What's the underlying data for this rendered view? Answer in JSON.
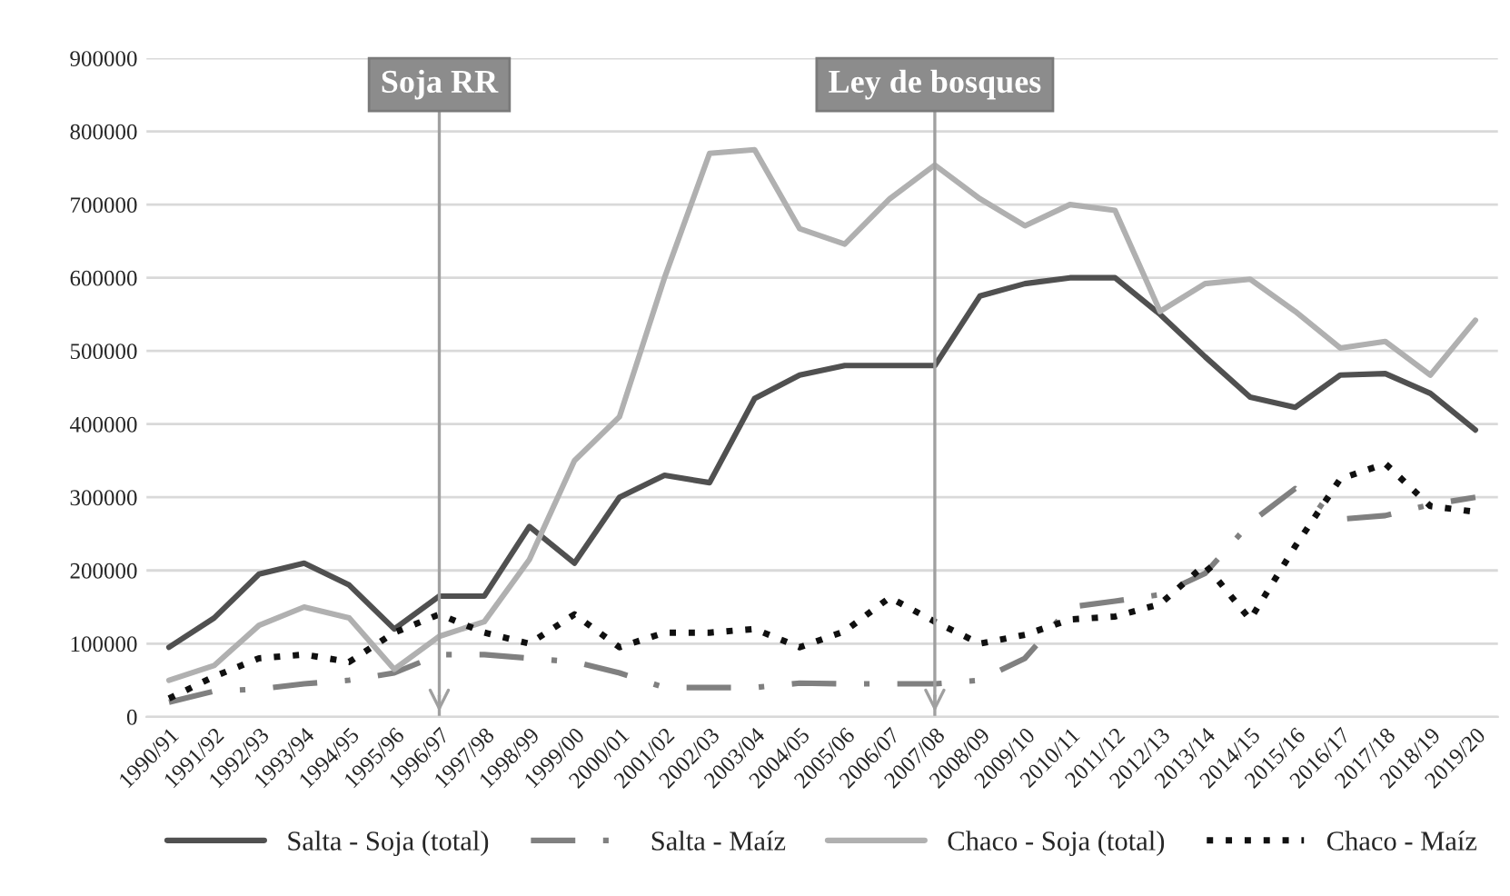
{
  "chart_data": {
    "type": "line",
    "categories": [
      "1990/91",
      "1991/92",
      "1992/93",
      "1993/94",
      "1994/95",
      "1995/96",
      "1996/97",
      "1997/98",
      "1998/99",
      "1999/00",
      "2000/01",
      "2001/02",
      "2002/03",
      "2003/04",
      "2004/05",
      "2005/06",
      "2006/07",
      "2007/08",
      "2008/09",
      "2009/10",
      "2010/11",
      "2011/12",
      "2012/13",
      "2013/14",
      "2014/15",
      "2015/16",
      "2016/17",
      "2017/18",
      "2018/19",
      "2019/20"
    ],
    "series": [
      {
        "name": "Salta - Soja (total)",
        "color": "#505050",
        "line_style": "solid",
        "values": [
          95000,
          135000,
          195000,
          210000,
          180000,
          120000,
          165000,
          165000,
          260000,
          210000,
          300000,
          330000,
          320000,
          435000,
          467000,
          480000,
          480000,
          480000,
          575000,
          592000,
          600000,
          600000,
          550000,
          492000,
          437000,
          423000,
          467000,
          469000,
          442000,
          392000
        ]
      },
      {
        "name": "Salta - Maíz",
        "color": "#808080",
        "line_style": "dashdot",
        "values": [
          20000,
          35000,
          38000,
          45000,
          50000,
          60000,
          85000,
          85000,
          80000,
          75000,
          60000,
          40000,
          40000,
          40000,
          46000,
          45000,
          45000,
          45000,
          50000,
          80000,
          150000,
          158000,
          167000,
          196000,
          265000,
          312000,
          270000,
          275000,
          290000,
          300000
        ]
      },
      {
        "name": "Chaco - Soja (total)",
        "color": "#b0b0b0",
        "line_style": "solid",
        "values": [
          50000,
          70000,
          125000,
          150000,
          135000,
          65000,
          110000,
          130000,
          215000,
          350000,
          410000,
          600000,
          770000,
          775000,
          667000,
          646000,
          708000,
          754000,
          708000,
          671000,
          700000,
          692000,
          554000,
          592000,
          598000,
          554000,
          504000,
          513000,
          467000,
          542000
        ]
      },
      {
        "name": "Chaco - Maíz",
        "color": "#101010",
        "line_style": "dotted",
        "values": [
          25000,
          55000,
          80000,
          85000,
          75000,
          115000,
          140000,
          115000,
          100000,
          140000,
          95000,
          115000,
          115000,
          120000,
          95000,
          117000,
          163000,
          130000,
          100000,
          112000,
          133000,
          137000,
          154000,
          208000,
          133000,
          233000,
          325000,
          346000,
          288000,
          280000
        ]
      }
    ],
    "ylim": [
      0,
      900000
    ],
    "yticks": [
      0,
      100000,
      200000,
      300000,
      400000,
      500000,
      600000,
      700000,
      800000,
      900000
    ],
    "grid": "y",
    "legend": "bottom",
    "ref_lines": [
      {
        "axis": "x",
        "value": "1996/97",
        "label": "Soja RR",
        "color": "#a0a0a0"
      },
      {
        "axis": "x",
        "value": "2007/08",
        "label": "Ley de bosques",
        "color": "#a0a0a0"
      }
    ]
  }
}
